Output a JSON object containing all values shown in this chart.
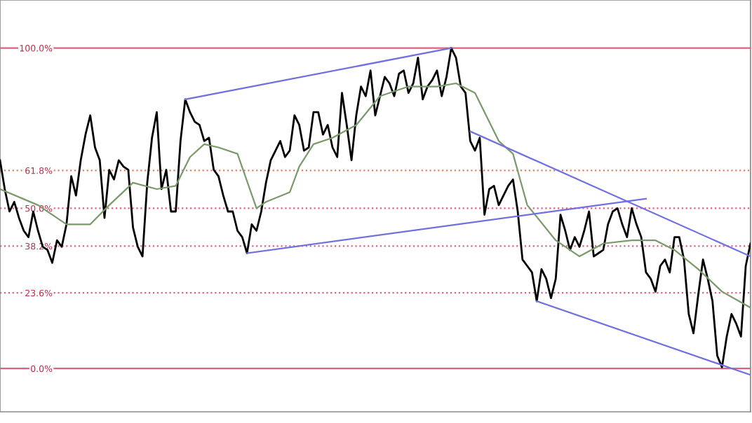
{
  "chart_data": {
    "type": "line",
    "categories": [
      null,
      null,
      null,
      null,
      null,
      null,
      null,
      null,
      null,
      null,
      null,
      null,
      null,
      null,
      null,
      null,
      null,
      null,
      null,
      null,
      null,
      null,
      null,
      null,
      null,
      null,
      null,
      null,
      null,
      null,
      null,
      null,
      null,
      null,
      null,
      null,
      null,
      null,
      null,
      null,
      null,
      null,
      null,
      null,
      null,
      null,
      null,
      null,
      null,
      null,
      null,
      null,
      null,
      null,
      null,
      null,
      null,
      null,
      null,
      null,
      null,
      null,
      null,
      null,
      null,
      null,
      null,
      null,
      null,
      null,
      null,
      null,
      null,
      null,
      null,
      null,
      null,
      null,
      null,
      null,
      null,
      null,
      null,
      null,
      null,
      null,
      null,
      null,
      null,
      null,
      null,
      null,
      null,
      null,
      null,
      null,
      null,
      null,
      null,
      null,
      null,
      null,
      null,
      null,
      null,
      null,
      null,
      null,
      null,
      null,
      null,
      null,
      null,
      null,
      null,
      null,
      null,
      null,
      null,
      null,
      null,
      null,
      null,
      null,
      null,
      null,
      null,
      null,
      null,
      null,
      null,
      null,
      null,
      null,
      null,
      null,
      null,
      null,
      null,
      null,
      null,
      null,
      null,
      null,
      null,
      null,
      null,
      null,
      null,
      null,
      null,
      null,
      null,
      null,
      null,
      null,
      null,
      null,
      null
    ],
    "series": [
      {
        "color": "#000000",
        "values": [
          65,
          56,
          49,
          52,
          47,
          43,
          41,
          49,
          43,
          38,
          37,
          33,
          40,
          38,
          45,
          60,
          54,
          65,
          73,
          79,
          69,
          65,
          47,
          62,
          59,
          65,
          63,
          62,
          44,
          38,
          35,
          58,
          72,
          80,
          56,
          62,
          49,
          49,
          71,
          84,
          80,
          77,
          76,
          71,
          72,
          62,
          60,
          54,
          49,
          49,
          43,
          41,
          36,
          45,
          43,
          49,
          58,
          65,
          68,
          71,
          66,
          68,
          79,
          76,
          68,
          69,
          80,
          80,
          73,
          76,
          69,
          66,
          86,
          76,
          65,
          79,
          88,
          85,
          93,
          79,
          85,
          91,
          89,
          85,
          92,
          93,
          86,
          89,
          97,
          84,
          88,
          90,
          93,
          85,
          91,
          100,
          97,
          88,
          86,
          71,
          68,
          72,
          48,
          56,
          57,
          51,
          54,
          57,
          59,
          49,
          34,
          32,
          30,
          21,
          31,
          28,
          22,
          28,
          48,
          43,
          37,
          41,
          38,
          43,
          49,
          35,
          36,
          37,
          45,
          49,
          50,
          45,
          41,
          50,
          45,
          41,
          30,
          28,
          24,
          32,
          34,
          30,
          41,
          41,
          34,
          17,
          11,
          23,
          34,
          28,
          21,
          4,
          0.4,
          10,
          17,
          14,
          10,
          32,
          39
        ]
      },
      {
        "color": "#7a9a6a",
        "values": [
          56,
          null,
          null,
          null,
          null,
          null,
          null,
          null,
          51,
          null,
          null,
          null,
          null,
          null,
          45,
          null,
          null,
          null,
          null,
          45,
          null,
          null,
          null,
          51,
          null,
          null,
          null,
          null,
          58,
          null,
          null,
          null,
          null,
          56,
          null,
          null,
          null,
          57,
          null,
          null,
          66,
          null,
          null,
          70,
          null,
          null,
          69,
          null,
          null,
          null,
          67,
          null,
          null,
          null,
          50,
          null,
          52,
          null,
          null,
          null,
          null,
          55,
          null,
          63,
          null,
          null,
          70,
          null,
          null,
          null,
          72,
          null,
          null,
          null,
          null,
          76,
          null,
          null,
          null,
          null,
          85,
          null,
          null,
          null,
          null,
          null,
          88,
          null,
          null,
          null,
          null,
          null,
          88,
          null,
          null,
          null,
          89,
          null,
          null,
          null,
          86,
          null,
          null,
          null,
          null,
          71,
          null,
          null,
          67,
          null,
          null,
          51,
          null,
          null,
          null,
          null,
          null,
          40,
          null,
          null,
          null,
          null,
          35,
          null,
          null,
          null,
          null,
          39,
          null,
          null,
          null,
          null,
          null,
          40,
          null,
          null,
          null,
          null,
          40,
          null,
          null,
          null,
          37,
          null,
          null,
          null,
          null,
          31,
          null,
          null,
          null,
          null,
          24,
          null,
          null,
          null,
          null,
          null,
          19
        ]
      },
      {
        "color": "#7070e0",
        "values": [
          null,
          null,
          null,
          null,
          null,
          null,
          null,
          null,
          null,
          null,
          null,
          null,
          null,
          null,
          null,
          null,
          null,
          null,
          null,
          null,
          null,
          null,
          null,
          null,
          null,
          null,
          null,
          null,
          null,
          null,
          null,
          null,
          null,
          null,
          null,
          null,
          null,
          null,
          null,
          84,
          null,
          null,
          null,
          null,
          null,
          null,
          null,
          null,
          null,
          null,
          null,
          null,
          null,
          null,
          null,
          null,
          null,
          null,
          null,
          null,
          null,
          null,
          null,
          null,
          null,
          null,
          null,
          null,
          null,
          null,
          null,
          null,
          null,
          null,
          null,
          null,
          null,
          null,
          null,
          null,
          null,
          null,
          null,
          null,
          null,
          null,
          null,
          null,
          null,
          null,
          null,
          null,
          null,
          null,
          null,
          100,
          null,
          null,
          null,
          null,
          null,
          null,
          null,
          null,
          null,
          null,
          null,
          null,
          null,
          null,
          null,
          null,
          null,
          null,
          null,
          null,
          null,
          null,
          null,
          null,
          null,
          null,
          null,
          null,
          null,
          null,
          null,
          null,
          null,
          null,
          null,
          null,
          null,
          null,
          null,
          null,
          null,
          null,
          null,
          null,
          null,
          null,
          null,
          null,
          null,
          null,
          null,
          null,
          null,
          null,
          null,
          null,
          null,
          null,
          null,
          null,
          null,
          null,
          null
        ]
      },
      {
        "color": "#7070e0",
        "values": [
          null,
          null,
          null,
          null,
          null,
          null,
          null,
          null,
          null,
          null,
          null,
          null,
          null,
          null,
          null,
          null,
          null,
          null,
          null,
          null,
          null,
          null,
          null,
          null,
          null,
          null,
          null,
          null,
          null,
          null,
          null,
          null,
          null,
          null,
          null,
          null,
          null,
          null,
          null,
          null,
          null,
          null,
          null,
          null,
          null,
          null,
          null,
          null,
          null,
          null,
          null,
          null,
          36,
          null,
          null,
          null,
          null,
          null,
          null,
          null,
          null,
          null,
          null,
          null,
          null,
          null,
          null,
          null,
          null,
          null,
          null,
          null,
          null,
          null,
          null,
          null,
          null,
          null,
          null,
          null,
          null,
          null,
          null,
          null,
          null,
          null,
          null,
          null,
          null,
          null,
          null,
          null,
          null,
          null,
          null,
          null,
          null,
          null,
          null,
          null,
          null,
          null,
          null,
          null,
          null,
          null,
          null,
          null,
          null,
          null,
          null,
          null,
          null,
          null,
          null,
          null,
          null,
          null,
          null,
          null,
          null,
          null,
          null,
          null,
          null,
          null,
          null,
          null,
          null,
          null,
          null,
          null,
          null,
          null,
          null,
          null,
          53,
          null,
          null,
          null,
          null,
          null,
          null,
          null,
          null,
          null,
          null,
          null,
          null,
          null,
          null,
          null,
          null,
          null,
          null,
          null,
          null,
          null,
          null
        ]
      },
      {
        "color": "#7070e0",
        "values": [
          null,
          null,
          null,
          null,
          null,
          null,
          null,
          null,
          null,
          null,
          null,
          null,
          null,
          null,
          null,
          null,
          null,
          null,
          null,
          null,
          null,
          null,
          null,
          null,
          null,
          null,
          null,
          null,
          null,
          null,
          null,
          null,
          null,
          null,
          null,
          null,
          null,
          null,
          null,
          null,
          null,
          null,
          null,
          null,
          null,
          null,
          null,
          null,
          null,
          null,
          null,
          null,
          null,
          null,
          null,
          null,
          null,
          null,
          null,
          null,
          null,
          null,
          null,
          null,
          null,
          null,
          null,
          null,
          null,
          null,
          null,
          null,
          null,
          null,
          null,
          null,
          null,
          null,
          null,
          null,
          null,
          null,
          null,
          null,
          null,
          null,
          null,
          null,
          null,
          null,
          null,
          null,
          null,
          null,
          null,
          null,
          null,
          null,
          null,
          74,
          null,
          null,
          null,
          null,
          null,
          null,
          null,
          null,
          null,
          null,
          null,
          null,
          null,
          null,
          null,
          null,
          null,
          null,
          null,
          null,
          null,
          null,
          null,
          null,
          null,
          null,
          null,
          null,
          null,
          null,
          null,
          null,
          null,
          null,
          null,
          null,
          null,
          null,
          null,
          null,
          null,
          null,
          null,
          null,
          null,
          null,
          null,
          null,
          null,
          null,
          null,
          null,
          null,
          null,
          null,
          null,
          null,
          null,
          35
        ]
      },
      {
        "color": "#7070e0",
        "values": [
          null,
          null,
          null,
          null,
          null,
          null,
          null,
          null,
          null,
          null,
          null,
          null,
          null,
          null,
          null,
          null,
          null,
          null,
          null,
          null,
          null,
          null,
          null,
          null,
          null,
          null,
          null,
          null,
          null,
          null,
          null,
          null,
          null,
          null,
          null,
          null,
          null,
          null,
          null,
          null,
          null,
          null,
          null,
          null,
          null,
          null,
          null,
          null,
          null,
          null,
          null,
          null,
          null,
          null,
          null,
          null,
          null,
          null,
          null,
          null,
          null,
          null,
          null,
          null,
          null,
          null,
          null,
          null,
          null,
          null,
          null,
          null,
          null,
          null,
          null,
          null,
          null,
          null,
          null,
          null,
          null,
          null,
          null,
          null,
          null,
          null,
          null,
          null,
          null,
          null,
          null,
          null,
          null,
          null,
          null,
          null,
          null,
          null,
          null,
          null,
          null,
          null,
          null,
          null,
          null,
          null,
          null,
          null,
          null,
          null,
          null,
          null,
          null,
          21,
          null,
          null,
          null,
          null,
          null,
          null,
          null,
          null,
          null,
          null,
          null,
          null,
          null,
          null,
          null,
          null,
          null,
          null,
          null,
          null,
          null,
          null,
          null,
          null,
          null,
          null,
          null,
          null,
          null,
          null,
          null,
          null,
          null,
          null,
          null,
          null,
          null,
          null,
          null,
          null,
          null,
          null,
          null,
          null,
          -2
        ]
      }
    ],
    "ylim": [
      -13.5,
      115
    ],
    "yticks": [
      {
        "value": 100,
        "label": "100.0%"
      },
      {
        "value": 61.8,
        "label": "61.8%"
      },
      {
        "value": 50,
        "label": "50.0%"
      },
      {
        "value": 38.2,
        "label": "38.2%"
      },
      {
        "value": 23.6,
        "label": "23.6%"
      },
      {
        "value": 0,
        "label": "0.0%"
      }
    ],
    "tick_labels": "y",
    "ref_lines": [
      {
        "axis": "y",
        "value": 100,
        "color": "#e06080",
        "line_style": "solid"
      },
      {
        "axis": "y",
        "value": 61.8,
        "color": "#e08060",
        "line_style": "dotted"
      },
      {
        "axis": "y",
        "value": 50,
        "color": "#e06080",
        "line_style": "dotted"
      },
      {
        "axis": "y",
        "value": 38.2,
        "color": "#e06080",
        "line_style": "dotted"
      },
      {
        "axis": "y",
        "value": 23.6,
        "color": "#e06080",
        "line_style": "dotted"
      },
      {
        "axis": "y",
        "value": 0,
        "color": "#e06080",
        "line_style": "solid"
      }
    ]
  }
}
